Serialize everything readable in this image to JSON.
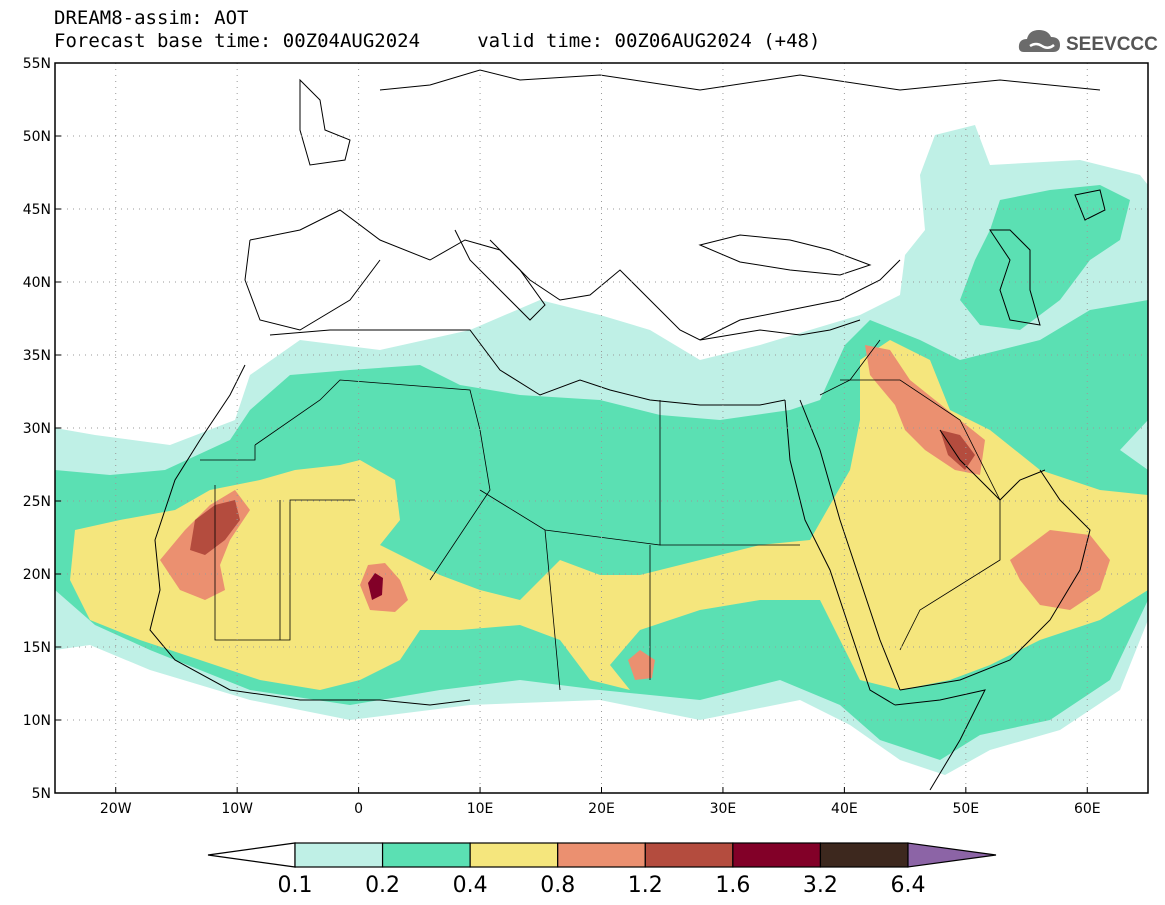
{
  "title": {
    "line1": "DREAM8-assim: AOT",
    "line2": "Forecast base time: 00Z04AUG2024     valid time: 00Z06AUG2024 (+48)"
  },
  "logo": {
    "text": "SEEVCCC",
    "icon": "cloud-icon"
  },
  "map": {
    "lon_range": [
      -25,
      65
    ],
    "lat_range": [
      5,
      55
    ],
    "lon_ticks": [
      {
        "value": -20,
        "label": "20W"
      },
      {
        "value": -10,
        "label": "10W"
      },
      {
        "value": 0,
        "label": "0"
      },
      {
        "value": 10,
        "label": "10E"
      },
      {
        "value": 20,
        "label": "20E"
      },
      {
        "value": 30,
        "label": "30E"
      },
      {
        "value": 40,
        "label": "40E"
      },
      {
        "value": 50,
        "label": "50E"
      },
      {
        "value": 60,
        "label": "60E"
      }
    ],
    "lat_ticks": [
      {
        "value": 55,
        "label": "55N"
      },
      {
        "value": 50,
        "label": "50N"
      },
      {
        "value": 45,
        "label": "45N"
      },
      {
        "value": 40,
        "label": "40N"
      },
      {
        "value": 35,
        "label": "35N"
      },
      {
        "value": 30,
        "label": "30N"
      },
      {
        "value": 25,
        "label": "25N"
      },
      {
        "value": 20,
        "label": "20N"
      },
      {
        "value": 15,
        "label": "15N"
      },
      {
        "value": 10,
        "label": "10N"
      },
      {
        "value": 5,
        "label": "5N"
      }
    ],
    "grid": "dotted"
  },
  "colorbar": {
    "levels": [
      "0.1",
      "0.2",
      "0.4",
      "0.8",
      "1.2",
      "1.6",
      "3.2",
      "6.4"
    ],
    "colors": [
      "#ffffff",
      "#bff0e6",
      "#5be0b3",
      "#f5e67d",
      "#eb9070",
      "#b44c3e",
      "#820028",
      "#3d281e",
      "#8c64a6"
    ]
  }
}
